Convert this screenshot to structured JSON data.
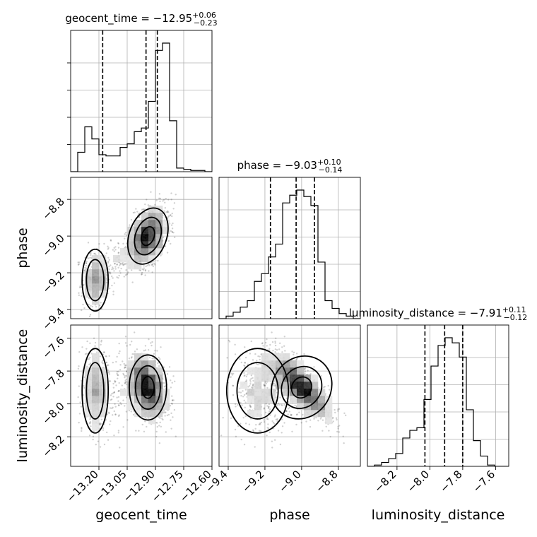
{
  "chart_data": {
    "type": "corner",
    "parameters": [
      "geocent_time",
      "phase",
      "luminosity_distance"
    ],
    "titles": [
      {
        "name": "geocent_time",
        "median": "−12.95",
        "plus": "+0.06",
        "minus": "−0.23"
      },
      {
        "name": "phase",
        "median": "−9.03",
        "plus": "+0.10",
        "minus": "−0.14"
      },
      {
        "name": "luminosity_distance",
        "median": "−7.91",
        "plus": "+0.11",
        "minus": "−0.12"
      }
    ],
    "ranges": {
      "geocent_time": [
        -13.35,
        -12.6
      ],
      "phase": [
        -9.45,
        -8.68
      ],
      "luminosity_distance": [
        -8.38,
        -7.52
      ]
    },
    "ticks": {
      "geocent_time": [
        {
          "v": -13.2,
          "label": "−13.20"
        },
        {
          "v": -13.05,
          "label": "−13.05"
        },
        {
          "v": -12.9,
          "label": "−12.90"
        },
        {
          "v": -12.75,
          "label": "−12.75"
        },
        {
          "v": -12.6,
          "label": "−12.60"
        }
      ],
      "phase": [
        {
          "v": -9.4,
          "label": "−9.4"
        },
        {
          "v": -9.2,
          "label": "−9.2"
        },
        {
          "v": -9.0,
          "label": "−9.0"
        },
        {
          "v": -8.8,
          "label": "−8.8"
        }
      ],
      "luminosity_distance": [
        {
          "v": -8.2,
          "label": "−8.2"
        },
        {
          "v": -8.0,
          "label": "−8.0"
        },
        {
          "v": -7.8,
          "label": "−7.8"
        },
        {
          "v": -7.6,
          "label": "−7.6"
        }
      ]
    },
    "quantile_lines": {
      "geocent_time": [
        -13.18,
        -12.95,
        -12.89
      ],
      "phase": [
        -9.17,
        -9.03,
        -8.93
      ],
      "luminosity_distance": [
        -8.03,
        -7.91,
        -7.8
      ]
    },
    "histograms": {
      "geocent_time": {
        "edges_start": -13.35,
        "bin_width": 0.0375,
        "counts": [
          0,
          16,
          37,
          27,
          14,
          13,
          13,
          20,
          23,
          33,
          36,
          58,
          100,
          106,
          42,
          3,
          2,
          1,
          1,
          0
        ]
      },
      "phase": {
        "edges_start": -9.45,
        "bin_width": 0.0385,
        "counts": [
          0,
          2,
          5,
          9,
          14,
          29,
          35,
          48,
          58,
          90,
          96,
          100,
          95,
          88,
          44,
          14,
          8,
          4,
          2,
          0
        ]
      },
      "luminosity_distance": {
        "edges_start": -8.38,
        "bin_width": 0.043,
        "counts": [
          0,
          1,
          3,
          6,
          10,
          22,
          28,
          30,
          52,
          78,
          94,
          100,
          96,
          85,
          44,
          20,
          8,
          1,
          0,
          0
        ]
      }
    },
    "modes": [
      {
        "tc": -13.22,
        "phase": -9.24,
        "dl": -7.92,
        "s_tc": 0.035,
        "s_ph": 0.085,
        "s_dl": 0.13,
        "weight": 0.25
      },
      {
        "tc": -12.94,
        "phase": -9.0,
        "dl": -7.9,
        "s_tc": 0.05,
        "s_ph": 0.08,
        "s_dl": 0.1,
        "weight": 0.75,
        "rho_ph_dl": -0.8
      }
    ],
    "axis_labels": {
      "geocent_time": "geocent_time",
      "phase": "phase",
      "luminosity_distance": "luminosity_distance"
    }
  }
}
